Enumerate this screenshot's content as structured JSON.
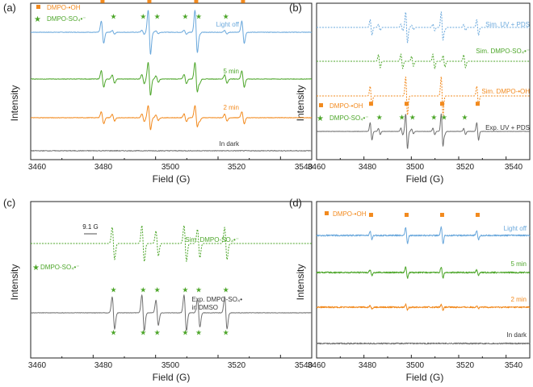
{
  "colors": {
    "blue": "#6aa8dc",
    "green": "#4da62a",
    "orange": "#f28a1e",
    "gray": "#707070",
    "axis": "#222222"
  },
  "chart_data": [
    {
      "panel": "(a)",
      "type": "line",
      "xlabel": "Field (G)",
      "ylabel": "Intensity",
      "xlim": [
        3460,
        3550
      ],
      "xticks": [
        3460,
        3480,
        3500,
        3520,
        3540
      ],
      "legend": [
        {
          "marker": "square",
          "color": "#f28a1e",
          "label": "DMPO-•OH"
        },
        {
          "marker": "star",
          "color": "#4da62a",
          "label": "DMPO-SO₄•⁻"
        }
      ],
      "series": [
        {
          "name": "Light off",
          "color": "#6aa8dc",
          "oh_amp": 1.0,
          "so4_amp": 0.18,
          "noise": 0.02,
          "markers": true
        },
        {
          "name": "5 min",
          "color": "#4da62a",
          "oh_amp": 0.75,
          "so4_amp": 0.42,
          "noise": 0.02,
          "markers": false
        },
        {
          "name": "2 min",
          "color": "#f28a1e",
          "oh_amp": 0.55,
          "so4_amp": 0.35,
          "noise": 0.02,
          "markers": false
        },
        {
          "name": "In dark",
          "color": "#707070",
          "oh_amp": 0.0,
          "so4_amp": 0.0,
          "noise": 0.03,
          "markers": false
        }
      ]
    },
    {
      "panel": "(b)",
      "type": "line",
      "xlabel": "Field (G)",
      "ylabel": "Intensity",
      "xlim": [
        3460,
        3550
      ],
      "xticks": [
        3460,
        3480,
        3500,
        3520,
        3540
      ],
      "legend": [
        {
          "marker": "square",
          "color": "#f28a1e",
          "label": "DMPO-•OH"
        },
        {
          "marker": "star",
          "color": "#4da62a",
          "label": "DMPO-SO₄•⁻"
        }
      ],
      "series": [
        {
          "name": "Sim. UV + PDS",
          "color": "#6aa8dc",
          "oh_amp": 0.8,
          "so4_amp": 0.35,
          "noise": 0,
          "dashed": true
        },
        {
          "name": "Sim. DMPO-SO₄•⁻",
          "color": "#4da62a",
          "oh_amp": 0.0,
          "so4_amp": 0.75,
          "noise": 0,
          "dashed": true
        },
        {
          "name": "Sim. DMPO-•OH",
          "color": "#f28a1e",
          "oh_amp": 1.0,
          "so4_amp": 0.0,
          "noise": 0,
          "dashed": true
        },
        {
          "name": "Exp. UV + PDS",
          "color": "#707070",
          "oh_amp": 0.9,
          "so4_amp": 0.35,
          "noise": 0.015,
          "markers": true
        }
      ]
    },
    {
      "panel": "(c)",
      "type": "line",
      "xlabel": "Field (G)",
      "ylabel": "Intensity",
      "xlim": [
        3460,
        3550
      ],
      "xticks": [
        3460,
        3480,
        3500,
        3520,
        3540
      ],
      "legend": [
        {
          "marker": "star",
          "color": "#4da62a",
          "label": "DMPO-SO₄•⁻"
        }
      ],
      "annotation": "9.1 G",
      "series": [
        {
          "name": "Sim. DMPO-SO₄•⁻",
          "color": "#4da62a",
          "oh_amp": 0.0,
          "so4_amp": 1.0,
          "noise": 0,
          "dashed": true
        },
        {
          "name": "Exp. DMPO-SO₄•",
          "name_line2": "in DMSO",
          "color": "#707070",
          "oh_amp": 0.0,
          "so4_amp": 1.0,
          "noise": 0.01,
          "markers": true
        }
      ]
    },
    {
      "panel": "(d)",
      "type": "line",
      "xlabel": "Field (G)",
      "ylabel": "Intensity",
      "xlim": [
        3460,
        3550
      ],
      "xticks": [
        3460,
        3480,
        3500,
        3520,
        3540
      ],
      "legend": [
        {
          "marker": "square",
          "color": "#f28a1e",
          "label": "DMPO-•OH"
        }
      ],
      "series": [
        {
          "name": "Light off",
          "color": "#6aa8dc",
          "oh_amp": 0.6,
          "so4_amp": 0.0,
          "noise": 0.09,
          "markers": true
        },
        {
          "name": "5 min",
          "color": "#4da62a",
          "oh_amp": 0.4,
          "so4_amp": 0.0,
          "noise": 0.09,
          "markers": false
        },
        {
          "name": "2 min",
          "color": "#f28a1e",
          "oh_amp": 0.2,
          "so4_amp": 0.0,
          "noise": 0.09,
          "markers": false
        },
        {
          "name": "In dark",
          "color": "#707070",
          "oh_amp": 0.0,
          "so4_amp": 0.0,
          "noise": 0.08,
          "markers": false
        }
      ]
    }
  ]
}
